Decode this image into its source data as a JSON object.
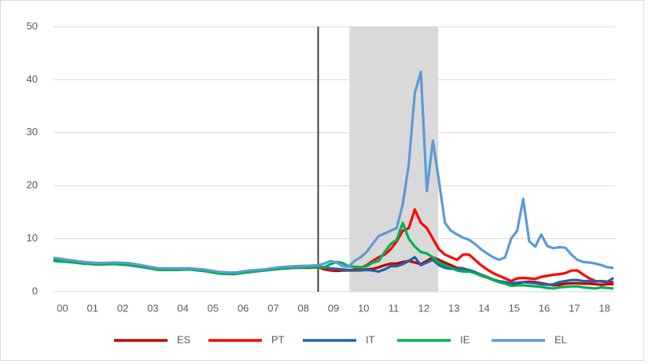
{
  "chart_data": {
    "type": "line",
    "x": [
      1999.7,
      2000.2,
      2000.7,
      2001.2,
      2001.7,
      2002.2,
      2002.7,
      2003.2,
      2003.7,
      2004.2,
      2004.7,
      2005.2,
      2005.7,
      2006.2,
      2006.7,
      2007.2,
      2007.7,
      2008.2,
      2008.5,
      2008.7,
      2008.9,
      2009.1,
      2009.3,
      2009.5,
      2009.7,
      2009.9,
      2010.1,
      2010.3,
      2010.5,
      2010.7,
      2010.9,
      2011.1,
      2011.3,
      2011.5,
      2011.7,
      2011.9,
      2012.1,
      2012.3,
      2012.5,
      2012.7,
      2012.9,
      2013.1,
      2013.3,
      2013.5,
      2013.7,
      2013.9,
      2014.1,
      2014.3,
      2014.5,
      2014.7,
      2014.9,
      2015.1,
      2015.3,
      2015.5,
      2015.7,
      2015.9,
      2016.1,
      2016.3,
      2016.5,
      2016.7,
      2016.9,
      2017.1,
      2017.3,
      2017.5,
      2017.7,
      2017.9,
      2018.1,
      2018.3
    ],
    "xlim": [
      1999.7,
      2018.35
    ],
    "xticks": [
      {
        "value": 2000,
        "label": "00"
      },
      {
        "value": 2001,
        "label": "01"
      },
      {
        "value": 2002,
        "label": "02"
      },
      {
        "value": 2003,
        "label": "03"
      },
      {
        "value": 2004,
        "label": "04"
      },
      {
        "value": 2005,
        "label": "05"
      },
      {
        "value": 2006,
        "label": "06"
      },
      {
        "value": 2007,
        "label": "07"
      },
      {
        "value": 2008,
        "label": "08"
      },
      {
        "value": 2009,
        "label": "09"
      },
      {
        "value": 2010,
        "label": "10"
      },
      {
        "value": 2011,
        "label": "11"
      },
      {
        "value": 2012,
        "label": "12"
      },
      {
        "value": 2013,
        "label": "13"
      },
      {
        "value": 2014,
        "label": "14"
      },
      {
        "value": 2015,
        "label": "15"
      },
      {
        "value": 2016,
        "label": "16"
      },
      {
        "value": 2017,
        "label": "17"
      },
      {
        "value": 2018,
        "label": "18"
      }
    ],
    "ylim": [
      0,
      50
    ],
    "yticks": [
      0,
      10,
      20,
      30,
      40,
      50
    ],
    "grid": true,
    "legend": "bottom",
    "vline": 2008.49,
    "shaded_region": [
      2009.53,
      2012.48
    ],
    "series": [
      {
        "name": "ES",
        "color": "#c00000",
        "values": [
          6.0,
          5.7,
          5.3,
          5.2,
          5.3,
          5.1,
          4.6,
          4.2,
          4.1,
          4.2,
          3.9,
          3.5,
          3.4,
          3.7,
          4.0,
          4.3,
          4.5,
          4.5,
          4.6,
          4.2,
          4.0,
          3.9,
          4.0,
          4.0,
          4.0,
          4.1,
          4.2,
          4.3,
          4.6,
          5.0,
          5.3,
          5.3,
          5.6,
          5.8,
          5.5,
          5.2,
          5.8,
          6.5,
          6.0,
          5.5,
          5.0,
          4.5,
          4.4,
          4.0,
          3.7,
          3.0,
          2.7,
          2.2,
          1.8,
          1.6,
          1.3,
          1.6,
          1.8,
          1.9,
          1.8,
          1.6,
          1.4,
          1.2,
          1.3,
          1.5,
          1.6,
          1.6,
          1.5,
          1.5,
          1.4,
          1.3,
          1.4,
          1.4
        ]
      },
      {
        "name": "PT",
        "color": "#ff0000",
        "values": [
          6.1,
          5.8,
          5.4,
          5.3,
          5.4,
          5.2,
          4.7,
          4.3,
          4.2,
          4.3,
          4.0,
          3.6,
          3.5,
          3.8,
          4.1,
          4.4,
          4.6,
          4.6,
          4.6,
          4.4,
          4.2,
          4.3,
          4.2,
          4.0,
          4.2,
          4.5,
          5.0,
          5.8,
          6.5,
          7.0,
          8.0,
          9.5,
          11.5,
          12.0,
          15.5,
          13.0,
          12.0,
          10.0,
          8.0,
          7.0,
          6.5,
          6.0,
          7.0,
          7.0,
          6.0,
          5.0,
          4.2,
          3.5,
          3.0,
          2.5,
          2.0,
          2.5,
          2.6,
          2.5,
          2.4,
          2.8,
          3.0,
          3.2,
          3.3,
          3.5,
          4.0,
          4.0,
          3.2,
          2.5,
          2.0,
          1.9,
          1.8,
          1.8
        ]
      },
      {
        "name": "IT",
        "color": "#1f63aa",
        "values": [
          6.2,
          5.9,
          5.5,
          5.4,
          5.4,
          5.3,
          4.8,
          4.3,
          4.3,
          4.4,
          4.1,
          3.7,
          3.5,
          3.9,
          4.1,
          4.5,
          4.7,
          4.8,
          4.7,
          4.6,
          4.4,
          4.3,
          4.2,
          4.1,
          4.0,
          4.0,
          4.1,
          4.0,
          3.8,
          4.2,
          4.8,
          4.8,
          5.2,
          5.8,
          6.5,
          5.0,
          5.5,
          6.0,
          5.0,
          4.5,
          4.3,
          4.4,
          4.3,
          4.1,
          3.7,
          3.2,
          2.8,
          2.3,
          2.0,
          1.8,
          1.6,
          1.7,
          1.8,
          1.7,
          1.6,
          1.4,
          1.3,
          1.4,
          1.8,
          2.0,
          2.2,
          2.2,
          2.0,
          2.0,
          1.9,
          2.0,
          1.9,
          2.6
        ]
      },
      {
        "name": "IE",
        "color": "#00b050",
        "values": [
          5.8,
          5.6,
          5.3,
          5.1,
          5.2,
          5.0,
          4.6,
          4.1,
          4.1,
          4.2,
          3.9,
          3.4,
          3.3,
          3.7,
          4.0,
          4.3,
          4.5,
          4.6,
          4.6,
          4.6,
          5.2,
          5.6,
          5.4,
          4.8,
          4.7,
          4.6,
          4.8,
          5.5,
          5.8,
          7.5,
          9.0,
          9.8,
          13.0,
          10.0,
          8.5,
          7.5,
          7.2,
          6.5,
          5.5,
          5.0,
          4.5,
          4.0,
          3.8,
          3.8,
          3.5,
          3.0,
          2.8,
          2.2,
          1.8,
          1.5,
          1.1,
          1.2,
          1.2,
          1.1,
          1.0,
          0.9,
          0.7,
          0.6,
          0.8,
          0.9,
          1.0,
          1.0,
          0.8,
          0.7,
          0.6,
          0.8,
          0.7,
          0.6
        ]
      },
      {
        "name": "EL",
        "color": "#5b9bd5",
        "values": [
          6.4,
          6.0,
          5.6,
          5.4,
          5.5,
          5.4,
          4.9,
          4.4,
          4.4,
          4.4,
          4.2,
          3.7,
          3.6,
          4.0,
          4.2,
          4.6,
          4.8,
          4.9,
          5.0,
          5.3,
          5.8,
          5.5,
          4.8,
          4.7,
          5.8,
          6.5,
          7.5,
          9.0,
          10.5,
          11.0,
          11.5,
          12.0,
          16.5,
          24.0,
          37.5,
          41.5,
          19.0,
          28.5,
          21.0,
          13.0,
          11.5,
          10.8,
          10.2,
          9.8,
          9.0,
          8.0,
          7.2,
          6.5,
          6.0,
          6.5,
          10.0,
          11.5,
          17.5,
          9.5,
          8.5,
          10.8,
          8.6,
          8.2,
          8.4,
          8.3,
          7.0,
          6.0,
          5.6,
          5.5,
          5.3,
          5.0,
          4.6,
          4.5
        ]
      }
    ]
  }
}
